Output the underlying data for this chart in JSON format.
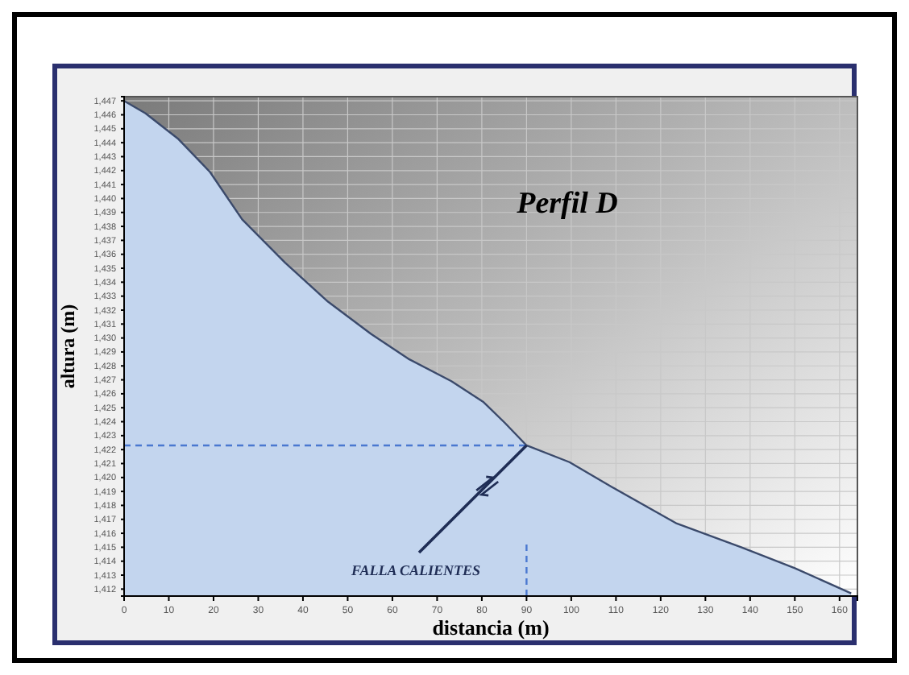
{
  "chart_data": {
    "type": "area",
    "title": "Perfil D",
    "xlabel": "distancia (m)",
    "ylabel": "altura (m)",
    "x": [
      0,
      4.8,
      12,
      19.2,
      26.4,
      36,
      45.6,
      55.2,
      63.6,
      73.2,
      80.4,
      85.2,
      90,
      99.6,
      109.2,
      123.6,
      138,
      150,
      162.6
    ],
    "series": [
      {
        "color": "#c3d5ee",
        "values": [
          1447,
          1446.1,
          1444.3,
          1441.9,
          1438.5,
          1435.4,
          1432.6,
          1430.3,
          1428.5,
          1426.9,
          1425.4,
          1423.9,
          1422.3,
          1421.1,
          1419.3,
          1416.7,
          1415,
          1413.5,
          1411.7
        ]
      }
    ],
    "xlim": [
      0,
      164
    ],
    "xticks": [
      0,
      10,
      20,
      30,
      40,
      50,
      60,
      70,
      80,
      90,
      100,
      110,
      120,
      130,
      140,
      150,
      160
    ],
    "ylim": [
      1411.5,
      1447.3
    ],
    "yticks": [
      {
        "value": 1412,
        "label": "1,412"
      },
      {
        "value": 1413,
        "label": "1,413"
      },
      {
        "value": 1414,
        "label": "1,414"
      },
      {
        "value": 1415,
        "label": "1,415"
      },
      {
        "value": 1416,
        "label": "1,416"
      },
      {
        "value": 1417,
        "label": "1,417"
      },
      {
        "value": 1418,
        "label": "1,418"
      },
      {
        "value": 1419,
        "label": "1,419"
      },
      {
        "value": 1420,
        "label": "1,420"
      },
      {
        "value": 1421,
        "label": "1,421"
      },
      {
        "value": 1422,
        "label": "1,422"
      },
      {
        "value": 1423,
        "label": "1,423"
      },
      {
        "value": 1424,
        "label": "1,424"
      },
      {
        "value": 1425,
        "label": "1,425"
      },
      {
        "value": 1426,
        "label": "1,426"
      },
      {
        "value": 1427,
        "label": "1,427"
      },
      {
        "value": 1428,
        "label": "1,428"
      },
      {
        "value": 1429,
        "label": "1,429"
      },
      {
        "value": 1430,
        "label": "1,430"
      },
      {
        "value": 1431,
        "label": "1,431"
      },
      {
        "value": 1432,
        "label": "1,432"
      },
      {
        "value": 1433,
        "label": "1,433"
      },
      {
        "value": 1434,
        "label": "1,434"
      },
      {
        "value": 1435,
        "label": "1,435"
      },
      {
        "value": 1436,
        "label": "1,436"
      },
      {
        "value": 1437,
        "label": "1,437"
      },
      {
        "value": 1438,
        "label": "1,438"
      },
      {
        "value": 1439,
        "label": "1,439"
      },
      {
        "value": 1440,
        "label": "1,440"
      },
      {
        "value": 1441,
        "label": "1,441"
      },
      {
        "value": 1442,
        "label": "1,442"
      },
      {
        "value": 1443,
        "label": "1,443"
      },
      {
        "value": 1444,
        "label": "1,444"
      },
      {
        "value": 1445,
        "label": "1,445"
      },
      {
        "value": 1446,
        "label": "1,446"
      },
      {
        "value": 1447,
        "label": "1,447"
      }
    ],
    "grid": true,
    "ref_lines": [
      {
        "axis": "x",
        "value": 90,
        "color": "#4a78d0",
        "line_style": "dashed"
      },
      {
        "axis": "y",
        "value": 1422.3,
        "color": "#4a78d0",
        "line_style": "dashed"
      }
    ],
    "annotations": [
      {
        "text": "FALLA CALIENTES",
        "x": 90,
        "y": 1422.3
      }
    ]
  }
}
